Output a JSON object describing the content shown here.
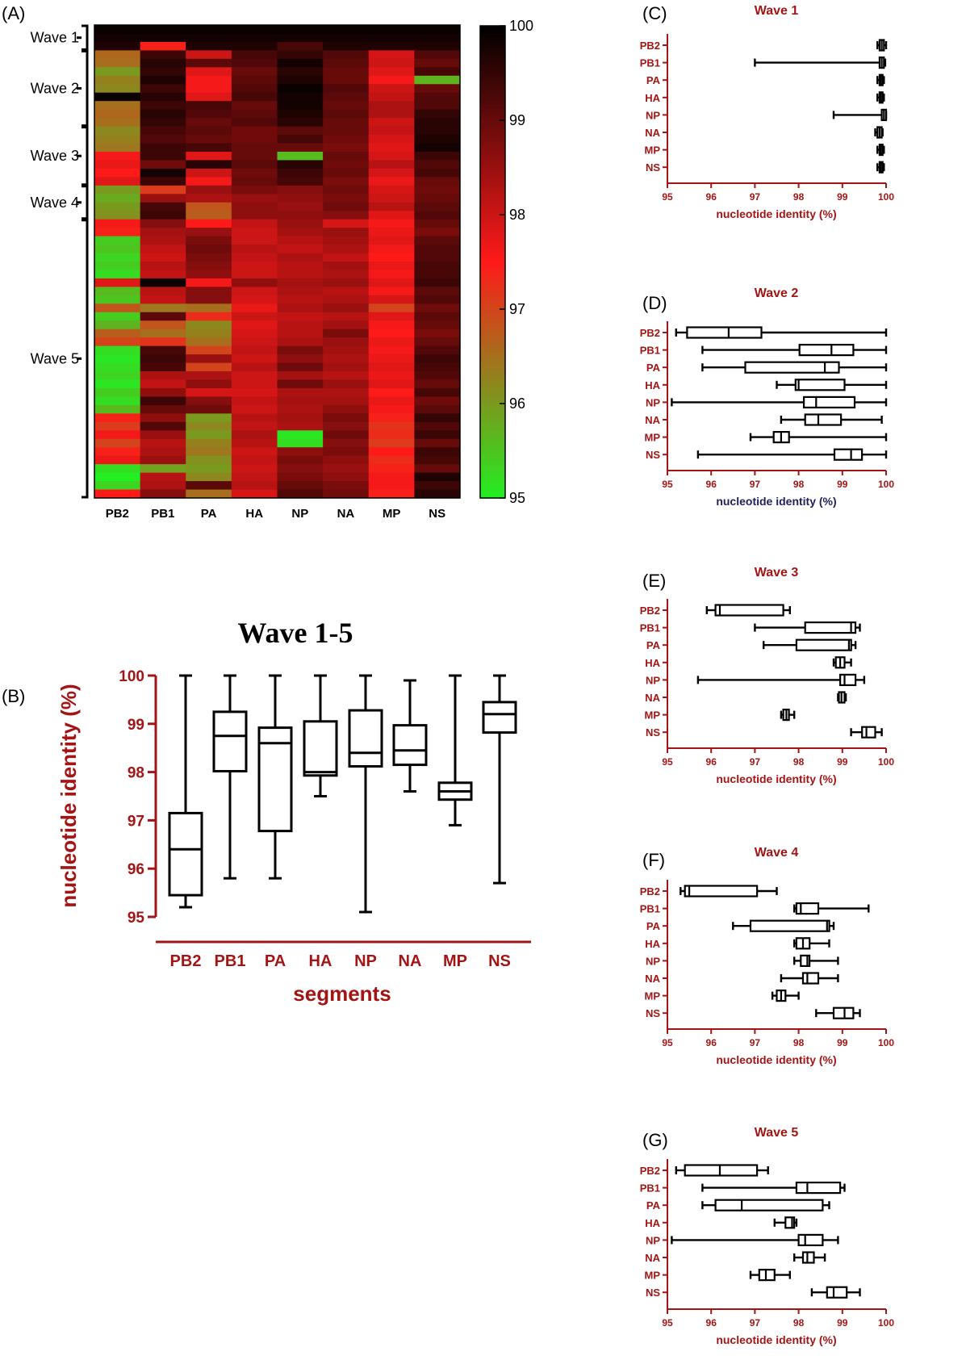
{
  "panels": {
    "A": "(A)",
    "B": "(B)",
    "C": "(C)",
    "D": "(D)",
    "E": "(E)",
    "F": "(F)",
    "G": "(G)"
  },
  "colors": {
    "axis": "#a31515",
    "box": "#000000",
    "heat_low": "#22ee22",
    "heat_mid": "#ff1a1a",
    "heat_high": "#000000"
  },
  "chart_data": [
    {
      "type": "heatmap",
      "panel": "(A)",
      "columns": [
        "PB2",
        "PB1",
        "PA",
        "HA",
        "NP",
        "NA",
        "MP",
        "NS"
      ],
      "color_scale": {
        "min": 95,
        "max": 100,
        "ticks": [
          100,
          99,
          98,
          97,
          96,
          95
        ],
        "colors": [
          "green",
          "red",
          "black"
        ]
      },
      "wave_groups": [
        {
          "label": "Wave 1",
          "rows": 3
        },
        {
          "label": "Wave 2",
          "rows": 9
        },
        {
          "label": "Wave 3",
          "rows": 7
        },
        {
          "label": "Wave 4",
          "rows": 4
        },
        {
          "label": "Wave 5",
          "rows": 33
        }
      ],
      "matrix": [
        [
          99.9,
          99.9,
          99.9,
          99.9,
          99.9,
          99.9,
          99.9,
          99.9
        ],
        [
          99.8,
          99.8,
          99.8,
          99.8,
          99.8,
          99.8,
          99.8,
          99.8
        ],
        [
          99.7,
          97.4,
          99.7,
          99.7,
          99.3,
          99.7,
          99.7,
          99.7
        ],
        [
          96.6,
          99.4,
          98.0,
          99.3,
          99.5,
          99.2,
          97.9,
          99.2
        ],
        [
          96.5,
          99.6,
          99.1,
          99.2,
          99.8,
          99.1,
          98.0,
          99.0
        ],
        [
          96.0,
          99.5,
          97.8,
          99.0,
          99.6,
          99.0,
          97.8,
          99.3
        ],
        [
          96.3,
          99.7,
          97.6,
          99.1,
          99.7,
          99.0,
          97.6,
          95.7
        ],
        [
          96.2,
          99.4,
          97.6,
          99.2,
          99.9,
          99.2,
          98.0,
          99.0
        ],
        [
          99.9,
          99.6,
          97.8,
          99.3,
          99.8,
          99.1,
          98.1,
          99.2
        ],
        [
          96.5,
          99.4,
          99.3,
          99.0,
          99.8,
          99.0,
          98.3,
          99.2
        ],
        [
          96.6,
          99.6,
          99.2,
          99.1,
          99.7,
          99.1,
          98.3,
          99.5
        ],
        [
          96.5,
          99.5,
          99.0,
          99.2,
          99.6,
          99.0,
          98.0,
          99.6
        ],
        [
          96.2,
          99.3,
          99.1,
          98.9,
          99.1,
          99.0,
          98.1,
          99.6
        ],
        [
          96.3,
          99.2,
          99.0,
          98.9,
          99.3,
          98.9,
          97.9,
          99.7
        ],
        [
          96.4,
          99.4,
          99.3,
          99.0,
          99.0,
          98.8,
          97.8,
          99.8
        ],
        [
          97.6,
          99.4,
          97.8,
          99.0,
          95.6,
          99.0,
          97.9,
          99.4
        ],
        [
          97.7,
          98.9,
          99.6,
          99.1,
          99.6,
          98.9,
          98.2,
          99.2
        ],
        [
          97.5,
          99.8,
          98.0,
          98.9,
          99.4,
          99.0,
          97.9,
          99.3
        ],
        [
          97.8,
          99.4,
          97.6,
          99.0,
          99.3,
          98.8,
          97.7,
          99.0
        ],
        [
          96.0,
          97.1,
          98.5,
          98.8,
          98.7,
          98.9,
          97.9,
          98.9
        ],
        [
          95.8,
          98.5,
          98.3,
          98.5,
          98.6,
          98.8,
          98.0,
          99.0
        ],
        [
          96.0,
          99.3,
          96.8,
          98.6,
          98.5,
          98.9,
          98.2,
          99.1
        ],
        [
          96.1,
          99.4,
          96.7,
          98.6,
          98.6,
          98.7,
          97.8,
          99.2
        ],
        [
          97.6,
          98.7,
          97.5,
          98.1,
          98.5,
          97.9,
          97.6,
          99.0
        ],
        [
          97.4,
          98.4,
          98.5,
          98.0,
          98.4,
          98.5,
          97.7,
          98.8
        ],
        [
          95.4,
          98.3,
          98.8,
          98.0,
          98.2,
          98.4,
          97.8,
          99.1
        ],
        [
          95.5,
          98.1,
          98.9,
          98.2,
          98.1,
          98.3,
          97.6,
          99.2
        ],
        [
          95.3,
          98.0,
          98.8,
          98.1,
          98.3,
          98.1,
          97.5,
          99.2
        ],
        [
          95.4,
          98.2,
          98.7,
          98.0,
          98.2,
          98.4,
          97.7,
          99.3
        ],
        [
          95.2,
          98.1,
          98.6,
          98.0,
          98.2,
          98.3,
          97.6,
          99.3
        ],
        [
          97.8,
          99.9,
          97.6,
          98.6,
          98.4,
          98.5,
          97.8,
          99.4
        ],
        [
          95.6,
          98.2,
          98.7,
          98.0,
          98.3,
          98.2,
          97.6,
          99.1
        ],
        [
          95.5,
          98.1,
          98.7,
          97.9,
          98.2,
          98.3,
          97.9,
          99.2
        ],
        [
          96.8,
          96.4,
          96.5,
          97.7,
          98.3,
          98.5,
          97.0,
          98.9
        ],
        [
          95.4,
          99.1,
          97.3,
          98.0,
          98.1,
          98.2,
          97.8,
          99.1
        ],
        [
          95.7,
          96.8,
          96.2,
          97.8,
          98.2,
          98.4,
          97.6,
          99.0
        ],
        [
          96.7,
          96.5,
          96.3,
          97.9,
          98.2,
          98.8,
          97.5,
          98.8
        ],
        [
          97.0,
          97.2,
          96.5,
          98.0,
          98.3,
          98.5,
          97.7,
          99.0
        ],
        [
          95.2,
          99.3,
          97.0,
          98.1,
          98.8,
          98.4,
          97.6,
          99.2
        ],
        [
          95.1,
          99.4,
          98.5,
          98.0,
          98.6,
          98.3,
          97.7,
          99.4
        ],
        [
          95.2,
          99.3,
          97.0,
          98.2,
          98.9,
          98.4,
          97.8,
          99.3
        ],
        [
          95.3,
          98.3,
          98.3,
          98.0,
          98.4,
          98.2,
          97.7,
          99.2
        ],
        [
          95.1,
          98.1,
          98.6,
          98.0,
          98.9,
          98.5,
          97.8,
          99.0
        ],
        [
          95.4,
          98.6,
          97.9,
          97.9,
          98.3,
          98.3,
          97.5,
          99.3
        ],
        [
          95.2,
          99.4,
          98.7,
          98.1,
          98.4,
          98.4,
          97.7,
          98.9
        ],
        [
          95.6,
          99.0,
          98.9,
          98.0,
          98.3,
          98.6,
          97.6,
          99.1
        ],
        [
          97.4,
          98.6,
          96.0,
          98.2,
          98.4,
          98.8,
          97.4,
          99.5
        ],
        [
          97.1,
          99.2,
          96.2,
          98.1,
          98.3,
          98.7,
          97.2,
          99.2
        ],
        [
          97.6,
          98.5,
          96.0,
          98.3,
          95.1,
          98.9,
          97.3,
          99.4
        ],
        [
          97.0,
          98.2,
          96.3,
          98.2,
          95.2,
          98.7,
          97.1,
          99.0
        ],
        [
          97.4,
          98.3,
          96.4,
          98.0,
          98.6,
          98.8,
          97.5,
          99.4
        ],
        [
          97.7,
          98.5,
          96.1,
          98.1,
          98.8,
          98.6,
          97.3,
          99.3
        ],
        [
          95.2,
          95.9,
          96.0,
          98.0,
          98.7,
          98.5,
          97.4,
          99.0
        ],
        [
          95.0,
          98.2,
          96.2,
          98.1,
          98.8,
          98.6,
          97.6,
          99.7
        ],
        [
          95.3,
          98.3,
          99.1,
          98.2,
          99.0,
          98.8,
          97.6,
          99.4
        ],
        [
          97.5,
          98.7,
          96.5,
          97.9,
          99.2,
          98.9,
          97.4,
          99.6
        ]
      ]
    },
    {
      "type": "box",
      "panel": "(B)",
      "title": "Wave 1-5",
      "xlabel": "segments",
      "ylabel": "nucleotide identity (%)",
      "ylim": [
        95,
        100
      ],
      "categories": [
        "PB2",
        "PB1",
        "PA",
        "HA",
        "NP",
        "NA",
        "MP",
        "NS"
      ],
      "boxes": [
        {
          "min": 95.2,
          "q1": 95.45,
          "median": 96.4,
          "q3": 97.15,
          "max": 100
        },
        {
          "min": 95.8,
          "q1": 98.02,
          "median": 98.75,
          "q3": 99.25,
          "max": 100
        },
        {
          "min": 95.8,
          "q1": 96.78,
          "median": 98.6,
          "q3": 98.92,
          "max": 100
        },
        {
          "min": 97.5,
          "q1": 97.93,
          "median": 98.0,
          "q3": 99.05,
          "max": 100
        },
        {
          "min": 95.1,
          "q1": 98.12,
          "median": 98.4,
          "q3": 99.28,
          "max": 100
        },
        {
          "min": 97.6,
          "q1": 98.15,
          "median": 98.45,
          "q3": 98.97,
          "max": 99.9
        },
        {
          "min": 96.9,
          "q1": 97.43,
          "median": 97.6,
          "q3": 97.78,
          "max": 100
        },
        {
          "min": 95.7,
          "q1": 98.82,
          "median": 99.2,
          "q3": 99.45,
          "max": 100
        }
      ]
    },
    {
      "type": "box",
      "orientation": "horizontal",
      "panel": "(C)",
      "title": "Wave 1",
      "xlabel": "nucleotide identity (%)",
      "xlim": [
        95,
        100
      ],
      "xticks": [
        95,
        96,
        97,
        98,
        99,
        100
      ],
      "categories": [
        "PB2",
        "PB1",
        "PA",
        "HA",
        "NP",
        "NA",
        "MP",
        "NS"
      ],
      "boxes": [
        {
          "min": 99.8,
          "q1": 99.85,
          "median": 99.9,
          "q3": 99.95,
          "max": 100
        },
        {
          "min": 97.0,
          "q1": 99.85,
          "median": 99.9,
          "q3": 99.95,
          "max": 99.98
        },
        {
          "min": 99.8,
          "q1": 99.85,
          "median": 99.88,
          "q3": 99.92,
          "max": 99.95
        },
        {
          "min": 99.8,
          "q1": 99.85,
          "median": 99.88,
          "q3": 99.92,
          "max": 99.95
        },
        {
          "min": 98.8,
          "q1": 99.9,
          "median": 99.95,
          "q3": 100,
          "max": 100
        },
        {
          "min": 99.75,
          "q1": 99.8,
          "median": 99.85,
          "q3": 99.9,
          "max": 99.92
        },
        {
          "min": 99.8,
          "q1": 99.85,
          "median": 99.88,
          "q3": 99.92,
          "max": 99.95
        },
        {
          "min": 99.8,
          "q1": 99.85,
          "median": 99.88,
          "q3": 99.92,
          "max": 99.95
        }
      ]
    },
    {
      "type": "box",
      "orientation": "horizontal",
      "panel": "(D)",
      "title": "Wave 2",
      "xlabel": "nucleotide identity (%)",
      "xlim": [
        95,
        100
      ],
      "xticks": [
        95,
        96,
        97,
        98,
        99,
        100
      ],
      "categories": [
        "PB2",
        "PB1",
        "PA",
        "HA",
        "NP",
        "NA",
        "MP",
        "NS"
      ],
      "boxes": [
        {
          "min": 95.2,
          "q1": 95.45,
          "median": 96.4,
          "q3": 97.15,
          "max": 100
        },
        {
          "min": 95.8,
          "q1": 98.02,
          "median": 98.75,
          "q3": 99.25,
          "max": 100
        },
        {
          "min": 95.8,
          "q1": 96.78,
          "median": 98.6,
          "q3": 98.92,
          "max": 100
        },
        {
          "min": 97.5,
          "q1": 97.93,
          "median": 98.0,
          "q3": 99.05,
          "max": 100
        },
        {
          "min": 95.1,
          "q1": 98.12,
          "median": 98.4,
          "q3": 99.28,
          "max": 100
        },
        {
          "min": 97.6,
          "q1": 98.15,
          "median": 98.45,
          "q3": 98.97,
          "max": 99.9
        },
        {
          "min": 96.9,
          "q1": 97.43,
          "median": 97.6,
          "q3": 97.78,
          "max": 100
        },
        {
          "min": 95.7,
          "q1": 98.82,
          "median": 99.2,
          "q3": 99.45,
          "max": 100
        }
      ]
    },
    {
      "type": "box",
      "orientation": "horizontal",
      "panel": "(E)",
      "title": "Wave 3",
      "xlabel": "nucleotide identity (%)",
      "xlim": [
        95,
        100
      ],
      "xticks": [
        95,
        96,
        97,
        98,
        99,
        100
      ],
      "categories": [
        "PB2",
        "PB1",
        "PA",
        "HA",
        "NP",
        "NA",
        "MP",
        "NS"
      ],
      "boxes": [
        {
          "min": 95.9,
          "q1": 96.1,
          "median": 96.2,
          "q3": 97.65,
          "max": 97.8
        },
        {
          "min": 97.0,
          "q1": 98.15,
          "median": 99.2,
          "q3": 99.3,
          "max": 99.4
        },
        {
          "min": 97.2,
          "q1": 97.95,
          "median": 99.15,
          "q3": 99.2,
          "max": 99.3
        },
        {
          "min": 98.8,
          "q1": 98.85,
          "median": 98.95,
          "q3": 99.05,
          "max": 99.2
        },
        {
          "min": 95.7,
          "q1": 98.95,
          "median": 99.05,
          "q3": 99.3,
          "max": 99.5
        },
        {
          "min": 98.9,
          "q1": 98.92,
          "median": 98.98,
          "q3": 99.05,
          "max": 99.08
        },
        {
          "min": 97.6,
          "q1": 97.65,
          "median": 97.72,
          "q3": 97.78,
          "max": 97.9
        },
        {
          "min": 99.2,
          "q1": 99.45,
          "median": 99.55,
          "q3": 99.75,
          "max": 99.9
        }
      ]
    },
    {
      "type": "box",
      "orientation": "horizontal",
      "panel": "(F)",
      "title": "Wave 4",
      "xlabel": "nucleotide identity (%)",
      "xlim": [
        95,
        100
      ],
      "xticks": [
        95,
        96,
        97,
        98,
        99,
        100
      ],
      "categories": [
        "PB2",
        "PB1",
        "PA",
        "HA",
        "NP",
        "NA",
        "MP",
        "NS"
      ],
      "boxes": [
        {
          "min": 95.3,
          "q1": 95.4,
          "median": 95.5,
          "q3": 97.05,
          "max": 97.5
        },
        {
          "min": 97.9,
          "q1": 97.95,
          "median": 98.05,
          "q3": 98.45,
          "max": 99.6
        },
        {
          "min": 96.5,
          "q1": 96.9,
          "median": 98.65,
          "q3": 98.7,
          "max": 98.8
        },
        {
          "min": 97.9,
          "q1": 97.95,
          "median": 98.1,
          "q3": 98.25,
          "max": 98.7
        },
        {
          "min": 97.9,
          "q1": 98.05,
          "median": 98.2,
          "q3": 98.25,
          "max": 98.9
        },
        {
          "min": 97.6,
          "q1": 98.1,
          "median": 98.2,
          "q3": 98.45,
          "max": 98.9
        },
        {
          "min": 97.4,
          "q1": 97.5,
          "median": 97.6,
          "q3": 97.7,
          "max": 98.0
        },
        {
          "min": 98.4,
          "q1": 98.8,
          "median": 99.05,
          "q3": 99.25,
          "max": 99.4
        }
      ]
    },
    {
      "type": "box",
      "orientation": "horizontal",
      "panel": "(G)",
      "title": "Wave 5",
      "xlabel": "nucleotide identity (%)",
      "xlim": [
        95,
        100
      ],
      "xticks": [
        95,
        96,
        97,
        98,
        99,
        100
      ],
      "categories": [
        "PB2",
        "PB1",
        "PA",
        "HA",
        "NP",
        "NA",
        "MP",
        "NS"
      ],
      "boxes": [
        {
          "min": 95.2,
          "q1": 95.4,
          "median": 96.2,
          "q3": 97.05,
          "max": 97.3
        },
        {
          "min": 95.8,
          "q1": 97.95,
          "median": 98.2,
          "q3": 98.95,
          "max": 99.05
        },
        {
          "min": 95.8,
          "q1": 96.1,
          "median": 96.7,
          "q3": 98.55,
          "max": 98.7
        },
        {
          "min": 97.45,
          "q1": 97.7,
          "median": 97.85,
          "q3": 97.9,
          "max": 97.95
        },
        {
          "min": 95.1,
          "q1": 98.0,
          "median": 98.15,
          "q3": 98.55,
          "max": 98.9
        },
        {
          "min": 97.9,
          "q1": 98.1,
          "median": 98.2,
          "q3": 98.35,
          "max": 98.6
        },
        {
          "min": 96.9,
          "q1": 97.1,
          "median": 97.25,
          "q3": 97.45,
          "max": 97.8
        },
        {
          "min": 98.3,
          "q1": 98.65,
          "median": 98.8,
          "q3": 99.1,
          "max": 99.4
        }
      ]
    }
  ]
}
